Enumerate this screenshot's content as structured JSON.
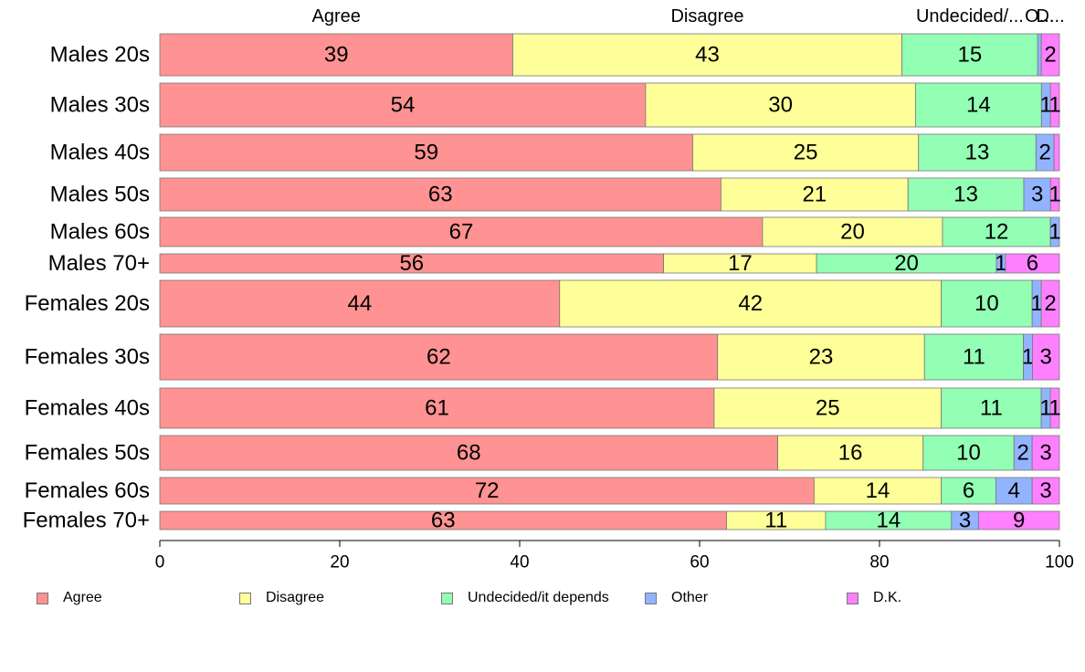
{
  "chart_data": {
    "type": "bar",
    "orientation": "horizontal",
    "stacked": true,
    "categories": [
      "Males 20s",
      "Males 30s",
      "Males 40s",
      "Males 50s",
      "Males 60s",
      "Males 70+",
      "Females 20s",
      "Females 30s",
      "Females 40s",
      "Females 50s",
      "Females 60s",
      "Females 70+"
    ],
    "series": [
      {
        "name": "Agree",
        "color": "#ff9292",
        "values": [
          39,
          54,
          59,
          63,
          67,
          56,
          44,
          62,
          61,
          68,
          72,
          63
        ]
      },
      {
        "name": "Disagree",
        "color": "#ffff99",
        "values": [
          43,
          30,
          25,
          21,
          20,
          17,
          42,
          23,
          25,
          16,
          14,
          11
        ]
      },
      {
        "name": "Undecided/it depends",
        "color": "#92ffb4",
        "values": [
          15,
          14,
          13,
          13,
          12,
          20,
          10,
          11,
          11,
          10,
          6,
          14
        ]
      },
      {
        "name": "Other",
        "color": "#92b4ff",
        "values": [
          0.4,
          1,
          2,
          3,
          1,
          1,
          1,
          1,
          1,
          2,
          4,
          3
        ]
      },
      {
        "name": "D.K.",
        "color": "#ff80ff",
        "values": [
          2,
          1,
          0.6,
          1,
          0,
          6,
          2,
          3,
          1,
          3,
          3,
          9
        ]
      }
    ],
    "top_labels": [
      "Agree",
      "Disagree",
      "Undecided/...",
      "O...",
      "D..."
    ],
    "x_ticks": [
      0,
      20,
      40,
      60,
      80,
      100
    ],
    "xlim": [
      0,
      100
    ],
    "legend": [
      "Agree",
      "Disagree",
      "Undecided/it depends",
      "Other",
      "D.K."
    ],
    "legend_position": "bottom",
    "grid": false
  }
}
